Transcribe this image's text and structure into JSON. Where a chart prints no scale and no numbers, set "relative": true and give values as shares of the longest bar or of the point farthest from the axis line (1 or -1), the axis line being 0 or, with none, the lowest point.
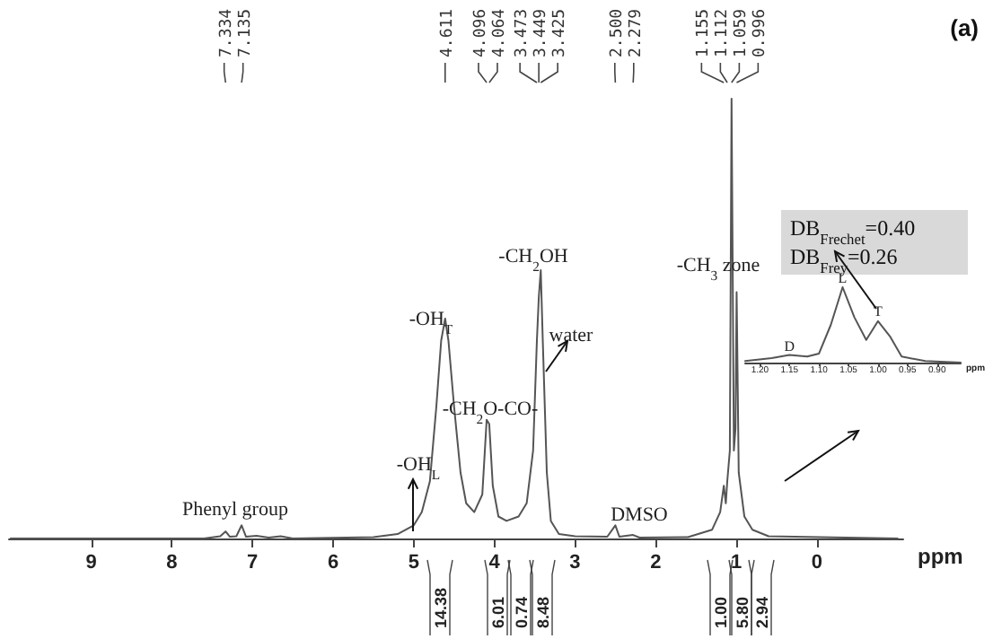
{
  "chart_data": [
    {
      "type": "line",
      "relative": true,
      "xlabel": "ppm",
      "xlim": [
        10.02,
        -1.07
      ],
      "xticks": [
        9,
        8,
        7,
        6,
        5,
        4,
        3,
        2,
        1,
        0
      ],
      "grid": false,
      "marker": "none",
      "line_style": "solid",
      "series": [
        {
          "color": "#555555",
          "x": [
            10.0,
            7.6,
            7.4,
            7.334,
            7.28,
            7.2,
            7.135,
            7.08,
            6.95,
            6.8,
            6.65,
            6.5,
            5.5,
            5.2,
            5.0,
            4.9,
            4.8,
            4.72,
            4.66,
            4.611,
            4.57,
            4.5,
            4.42,
            4.35,
            4.25,
            4.15,
            4.096,
            4.064,
            4.02,
            3.95,
            3.85,
            3.7,
            3.6,
            3.52,
            3.473,
            3.449,
            3.425,
            3.4,
            3.35,
            3.3,
            3.2,
            3.0,
            2.6,
            2.5,
            2.45,
            2.28,
            2.2,
            1.6,
            1.3,
            1.2,
            1.155,
            1.13,
            1.112,
            1.08,
            1.059,
            1.03,
            1.01,
            0.996,
            0.97,
            0.9,
            0.8,
            0.6,
            -1.0
          ],
          "values": [
            0,
            0,
            0.005,
            0.016,
            0.004,
            0.005,
            0.03,
            0.004,
            0.006,
            0.002,
            0.005,
            0,
            0.003,
            0.01,
            0.03,
            0.06,
            0.13,
            0.3,
            0.45,
            0.5,
            0.45,
            0.3,
            0.15,
            0.08,
            0.06,
            0.1,
            0.27,
            0.26,
            0.12,
            0.05,
            0.04,
            0.05,
            0.08,
            0.2,
            0.45,
            0.55,
            0.61,
            0.45,
            0.15,
            0.04,
            0.01,
            0.005,
            0.004,
            0.03,
            0.004,
            0.008,
            0.002,
            0.003,
            0.02,
            0.06,
            0.12,
            0.08,
            0.13,
            0.2,
            1.0,
            0.2,
            0.25,
            0.56,
            0.15,
            0.05,
            0.02,
            0.005,
            0
          ]
        }
      ],
      "annotations": [
        "(a)",
        {
          "text": "7.334",
          "x": 7.334
        },
        {
          "text": "7.135",
          "x": 7.135
        },
        {
          "text": "4.611",
          "x": 4.611
        },
        {
          "text": "4.096",
          "x": 4.096
        },
        {
          "text": "4.064",
          "x": 4.064
        },
        {
          "text": "3.473",
          "x": 3.473
        },
        {
          "text": "3.449",
          "x": 3.449
        },
        {
          "text": "3.425",
          "x": 3.425
        },
        {
          "text": "2.500",
          "x": 2.5
        },
        {
          "text": "2.279",
          "x": 2.279
        },
        {
          "text": "1.155",
          "x": 1.155
        },
        {
          "text": "1.112",
          "x": 1.112
        },
        {
          "text": "1.059",
          "x": 1.059
        },
        {
          "text": "0.996",
          "x": 0.996
        },
        "14.38",
        "6.01",
        "0.74",
        "8.48",
        "1.00",
        "5.80",
        "2.94",
        "-OH$_{T}$",
        "-OH$_{L}$",
        "-CH$_{2}$O-CO-",
        "-CH$_{2}$OH",
        "water",
        "-CH$_{3}$ zone",
        "DMSO",
        "Phenyl group"
      ]
    },
    {
      "type": "line",
      "relative": true,
      "xlabel": "ppm",
      "xlim": [
        1.225,
        0.86
      ],
      "xticks": [
        {
          "value": 1.2,
          "label": "1.20"
        },
        {
          "value": 1.15,
          "label": "1.15"
        },
        {
          "value": 1.1,
          "label": "1.10"
        },
        {
          "value": 1.05,
          "label": "1.05"
        },
        {
          "value": 1.0,
          "label": "1.00"
        },
        {
          "value": 0.95,
          "label": "0.95"
        },
        {
          "value": 0.9,
          "label": "0.90"
        }
      ],
      "grid": false,
      "marker": "none",
      "line_style": "solid",
      "series": [
        {
          "color": "#555555",
          "x": [
            1.225,
            1.18,
            1.15,
            1.12,
            1.1,
            1.08,
            1.06,
            1.04,
            1.02,
            1.0,
            0.98,
            0.96,
            0.92,
            0.86
          ],
          "values": [
            0.02,
            0.06,
            0.1,
            0.08,
            0.12,
            0.5,
            1.0,
            0.6,
            0.3,
            0.55,
            0.35,
            0.08,
            0.02,
            0
          ]
        }
      ],
      "annotations": [
        "DB$_{Frechet}$=0.40",
        "DB$_{Frey}$=0.26",
        {
          "text": "D",
          "x": 1.15,
          "y": 0.16
        },
        {
          "text": "L",
          "x": 1.06,
          "y": 1.06
        },
        {
          "text": "T",
          "x": 1.0,
          "y": 0.62
        }
      ]
    }
  ]
}
